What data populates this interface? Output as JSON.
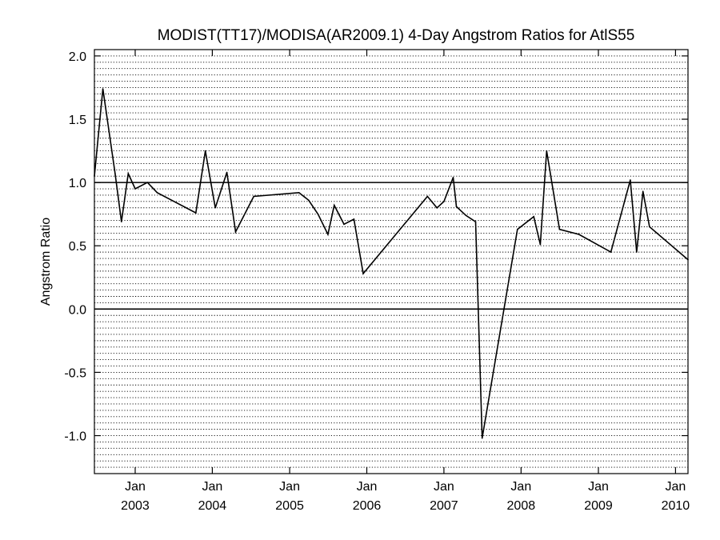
{
  "chart_data": {
    "type": "line",
    "title": "MODIST(TT17)/MODISA(AR2009.1) 4-Day Angstrom Ratios for AtlS55",
    "xlabel": "",
    "ylabel": "Angstrom Ratio",
    "xlim": [
      "2002-06-22",
      "2010-03-01"
    ],
    "ylim": [
      -1.3,
      2.05
    ],
    "grid": true,
    "grid_step": 0.05,
    "reference_lines": [
      0.0,
      1.0
    ],
    "yticks": [
      {
        "value": 2.0,
        "label": "2.0"
      },
      {
        "value": 1.5,
        "label": "1.5"
      },
      {
        "value": 1.0,
        "label": "1.0"
      },
      {
        "value": 0.5,
        "label": "0.5"
      },
      {
        "value": 0.0,
        "label": "0.0"
      },
      {
        "value": -0.5,
        "label": "-0.5"
      },
      {
        "value": -1.0,
        "label": "-1.0"
      }
    ],
    "xticks": [
      {
        "date": "2003-01-01",
        "month": "Jan",
        "year": "2003"
      },
      {
        "date": "2004-01-01",
        "month": "Jan",
        "year": "2004"
      },
      {
        "date": "2005-01-01",
        "month": "Jan",
        "year": "2005"
      },
      {
        "date": "2006-01-01",
        "month": "Jan",
        "year": "2006"
      },
      {
        "date": "2007-01-01",
        "month": "Jan",
        "year": "2007"
      },
      {
        "date": "2008-01-01",
        "month": "Jan",
        "year": "2008"
      },
      {
        "date": "2009-01-01",
        "month": "Jan",
        "year": "2009"
      },
      {
        "date": "2010-01-01",
        "month": "Jan",
        "year": "2010"
      }
    ],
    "series": [
      {
        "color": "#000000",
        "points": [
          {
            "x": "2002-06-22",
            "y": 1.05
          },
          {
            "x": "2002-08-01",
            "y": 1.74
          },
          {
            "x": "2002-09-28",
            "y": 1.07
          },
          {
            "x": "2002-10-28",
            "y": 0.69
          },
          {
            "x": "2002-11-29",
            "y": 1.07
          },
          {
            "x": "2003-01-01",
            "y": 0.95
          },
          {
            "x": "2003-02-28",
            "y": 1.0
          },
          {
            "x": "2003-04-15",
            "y": 0.92
          },
          {
            "x": "2003-10-15",
            "y": 0.76
          },
          {
            "x": "2003-11-29",
            "y": 1.25
          },
          {
            "x": "2004-01-15",
            "y": 0.8
          },
          {
            "x": "2004-03-10",
            "y": 1.08
          },
          {
            "x": "2004-04-20",
            "y": 0.61
          },
          {
            "x": "2004-07-15",
            "y": 0.89
          },
          {
            "x": "2005-02-14",
            "y": 0.92
          },
          {
            "x": "2005-04-01",
            "y": 0.86
          },
          {
            "x": "2005-05-15",
            "y": 0.75
          },
          {
            "x": "2005-07-01",
            "y": 0.59
          },
          {
            "x": "2005-07-31",
            "y": 0.82
          },
          {
            "x": "2005-09-15",
            "y": 0.67
          },
          {
            "x": "2005-11-01",
            "y": 0.71
          },
          {
            "x": "2005-12-15",
            "y": 0.28
          },
          {
            "x": "2006-10-15",
            "y": 0.89
          },
          {
            "x": "2006-11-29",
            "y": 0.8
          },
          {
            "x": "2007-01-01",
            "y": 0.85
          },
          {
            "x": "2007-02-14",
            "y": 1.04
          },
          {
            "x": "2007-03-01",
            "y": 0.81
          },
          {
            "x": "2007-04-15",
            "y": 0.74
          },
          {
            "x": "2007-05-31",
            "y": 0.69
          },
          {
            "x": "2007-07-01",
            "y": -1.02
          },
          {
            "x": "2007-12-15",
            "y": 0.63
          },
          {
            "x": "2008-03-01",
            "y": 0.73
          },
          {
            "x": "2008-04-01",
            "y": 0.51
          },
          {
            "x": "2008-05-01",
            "y": 1.25
          },
          {
            "x": "2008-07-01",
            "y": 0.63
          },
          {
            "x": "2008-10-01",
            "y": 0.59
          },
          {
            "x": "2009-03-01",
            "y": 0.45
          },
          {
            "x": "2009-06-01",
            "y": 1.02
          },
          {
            "x": "2009-07-01",
            "y": 0.45
          },
          {
            "x": "2009-07-31",
            "y": 0.93
          },
          {
            "x": "2009-08-31",
            "y": 0.65
          },
          {
            "x": "2010-03-01",
            "y": 0.39
          }
        ]
      }
    ]
  }
}
